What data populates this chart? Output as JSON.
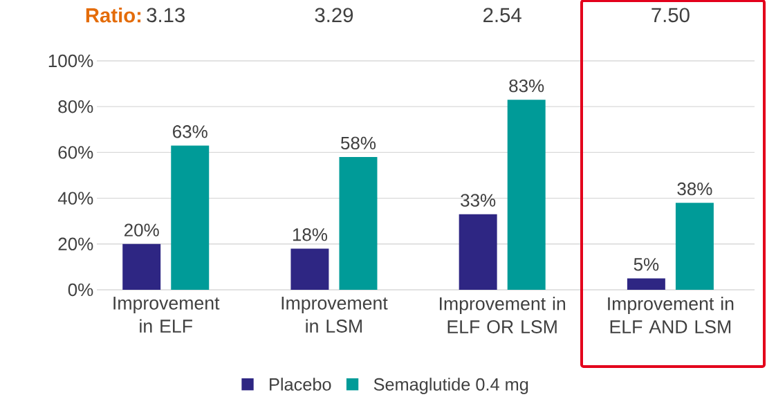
{
  "chart_data": {
    "type": "bar",
    "categories": [
      "Improvement in ELF",
      "Improvement in LSM",
      "Improvement in ELF OR LSM",
      "Improvement in ELF AND LSM"
    ],
    "series": [
      {
        "name": "Placebo",
        "color": "#2e2683",
        "values": [
          20,
          18,
          33,
          5
        ],
        "value_labels": [
          "20%",
          "18%",
          "33%",
          "5%"
        ]
      },
      {
        "name": "Semaglutide 0.4 mg",
        "color": "#009b98",
        "values": [
          63,
          58,
          83,
          38
        ],
        "value_labels": [
          "63%",
          "58%",
          "83%",
          "38%"
        ]
      }
    ],
    "ylim": [
      0,
      100
    ],
    "yticks": [
      {
        "value": 0,
        "label": "0%"
      },
      {
        "value": 20,
        "label": "20%"
      },
      {
        "value": 40,
        "label": "40%"
      },
      {
        "value": 60,
        "label": "60%"
      },
      {
        "value": 80,
        "label": "80%"
      },
      {
        "value": 100,
        "label": "100%"
      }
    ],
    "grid": "y",
    "legend": "bottom",
    "annotations": [
      "**Ratio:**",
      "3.13",
      "3.29",
      "2.54",
      "7.50"
    ]
  }
}
